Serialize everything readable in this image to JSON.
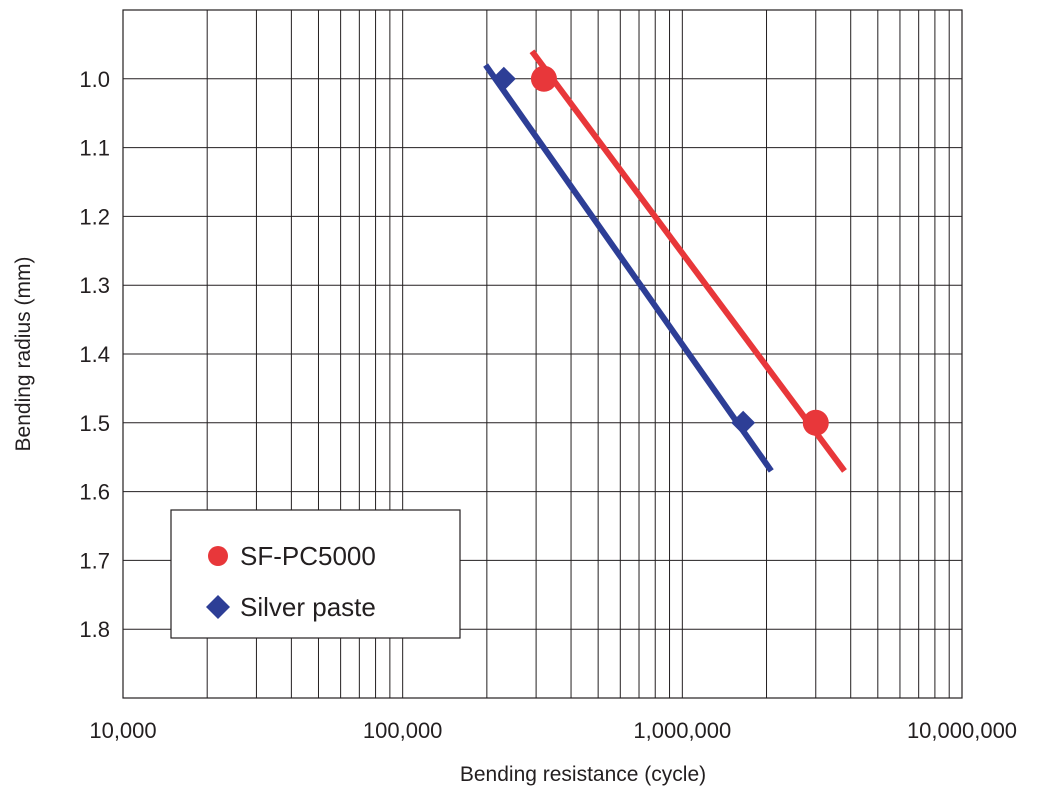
{
  "chart_data": {
    "type": "line",
    "xscale": "log",
    "xlim": [
      10000,
      10000000
    ],
    "ylim_display": [
      0.9,
      1.9
    ],
    "y_inverted": true,
    "x_ticks": [
      10000,
      100000,
      1000000,
      10000000
    ],
    "x_tick_labels": [
      "10,000",
      "100,000",
      "1,000,000",
      "10,000,000"
    ],
    "y_ticks": [
      1.0,
      1.1,
      1.2,
      1.3,
      1.4,
      1.5,
      1.6,
      1.7,
      1.8
    ],
    "y_tick_labels": [
      "1.0",
      "1.1",
      "1.2",
      "1.3",
      "1.4",
      "1.5",
      "1.6",
      "1.7",
      "1.8"
    ],
    "xlabel": "Bending resistance (cycle)",
    "ylabel": "Bending radius (mm)",
    "grid": true,
    "legend_position": "bottom-left",
    "series": [
      {
        "name": "SF-PC5000",
        "color": "#e8373a",
        "marker": "circle",
        "points": [
          {
            "x": 320000,
            "y": 1.0
          },
          {
            "x": 3000000,
            "y": 1.5
          }
        ],
        "fit_line": [
          {
            "x": 290000,
            "y": 0.96
          },
          {
            "x": 3800000,
            "y": 1.57
          }
        ]
      },
      {
        "name": "Silver paste",
        "color": "#2d3e96",
        "marker": "diamond",
        "points": [
          {
            "x": 230000,
            "y": 1.0
          },
          {
            "x": 1650000,
            "y": 1.5
          }
        ],
        "fit_line": [
          {
            "x": 198000,
            "y": 0.98
          },
          {
            "x": 2080000,
            "y": 1.57
          }
        ]
      }
    ]
  }
}
